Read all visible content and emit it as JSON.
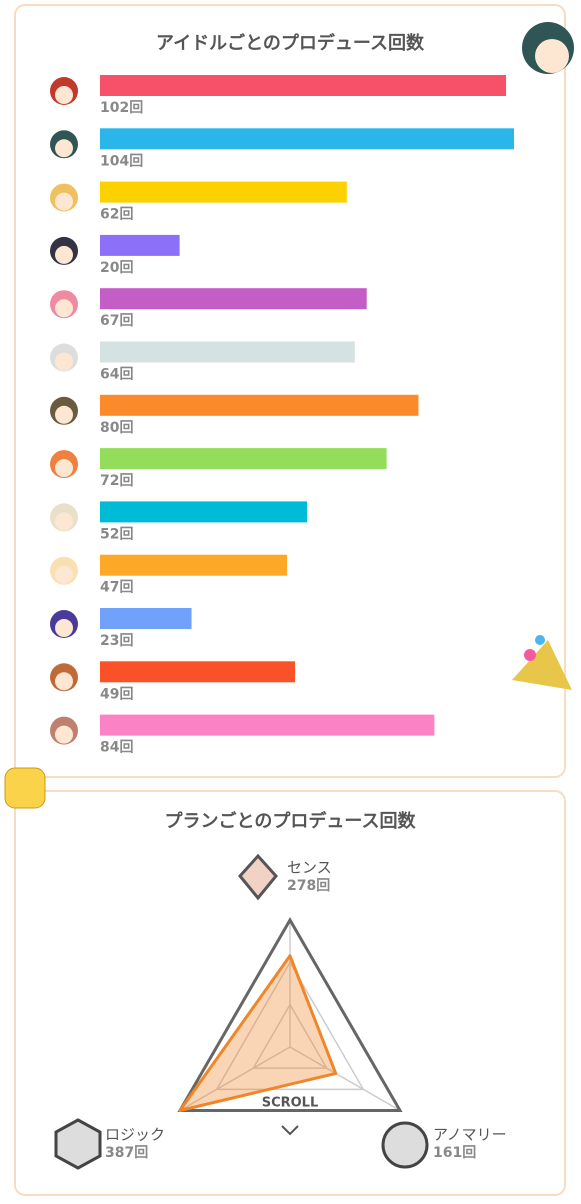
{
  "chart_data": [
    {
      "type": "bar",
      "title": "アイドルごとのプロデュース回数",
      "categories": [
        null,
        null,
        null,
        null,
        null,
        null,
        null,
        null,
        null,
        null,
        null,
        null,
        null
      ],
      "values": [
        102,
        104,
        62,
        20,
        67,
        64,
        80,
        72,
        52,
        47,
        23,
        49,
        84
      ],
      "value_labels": [
        "102回",
        "104回",
        "62回",
        "20回",
        "67回",
        "64回",
        "80回",
        "72回",
        "52回",
        "47回",
        "23回",
        "49回",
        "84回"
      ],
      "colors": [
        "#f7516a",
        "#2bb6ea",
        "#fdd100",
        "#8c71f8",
        "#c25ec6",
        "#d4e2e2",
        "#fb8a2a",
        "#93dd5a",
        "#00bbd6",
        "#fda927",
        "#70a1fb",
        "#fa5128",
        "#fb82c4"
      ]
    },
    {
      "type": "radar",
      "title": "プランごとのプロデュース回数",
      "categories": [
        "センス",
        "アノマリー",
        "ロジック"
      ],
      "values": [
        278,
        161,
        387
      ],
      "value_labels": [
        "278回",
        "161回",
        "387回"
      ],
      "color": "#f0862a"
    }
  ],
  "scroll_hint": "SCROLL"
}
